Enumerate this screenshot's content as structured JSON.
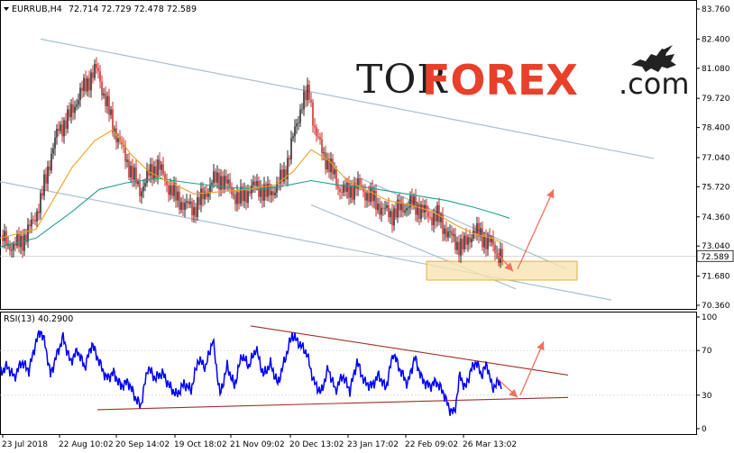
{
  "header": {
    "symbol": "EURRUB,H4",
    "ohlc": "72.714 72.729 72.478 72.589",
    "indicator": "RSI(13) 40.2900",
    "price_tag": "72.589"
  },
  "logo": {
    "part1": "TOR",
    "part2": "FOREX",
    "part3": ".com"
  },
  "colors": {
    "candle_up": "#0d0d0d",
    "candle_down": "#c81414",
    "ma_fast": "#f0a020",
    "ma_slow": "#20a090",
    "channel": "#a9bfd0",
    "rsi_line": "#0000ff",
    "rsi_trend": "#a0302a",
    "arrow": "#f07060",
    "zone_fill": "#f7e2b0",
    "zone_border": "#e0b040"
  },
  "chart_data": [
    {
      "type": "candlestick",
      "title": "EURRUB,H4",
      "ylim": [
        70.36,
        83.76
      ],
      "y_ticks": [
        "83.760",
        "82.400",
        "81.080",
        "79.720",
        "78.400",
        "77.040",
        "75.720",
        "74.360",
        "73.040",
        "71.680",
        "70.360"
      ],
      "x_ticks": [
        "23 Jul 2018",
        "22 Aug 10:02",
        "20 Sep 14:02",
        "19 Oct 18:02",
        "21 Nov 09:02",
        "20 Dec 13:02",
        "23 Jan 17:02",
        "22 Feb 09:02",
        "26 Mar 13:02"
      ],
      "last_price": 72.589,
      "close_path": [
        [
          0,
          73.6
        ],
        [
          15,
          73.1
        ],
        [
          30,
          73.6
        ],
        [
          45,
          75.0
        ],
        [
          55,
          76.8
        ],
        [
          65,
          78.2
        ],
        [
          75,
          78.6
        ],
        [
          85,
          79.5
        ],
        [
          100,
          80.6
        ],
        [
          108,
          81.0
        ],
        [
          115,
          79.9
        ],
        [
          125,
          78.6
        ],
        [
          135,
          77.6
        ],
        [
          145,
          76.6
        ],
        [
          155,
          75.7
        ],
        [
          165,
          76.4
        ],
        [
          175,
          76.8
        ],
        [
          185,
          75.9
        ],
        [
          195,
          75.2
        ],
        [
          205,
          74.8
        ],
        [
          215,
          74.6
        ],
        [
          225,
          75.1
        ],
        [
          235,
          75.8
        ],
        [
          245,
          76.0
        ],
        [
          255,
          75.6
        ],
        [
          265,
          75.1
        ],
        [
          275,
          75.6
        ],
        [
          285,
          75.9
        ],
        [
          295,
          75.5
        ],
        [
          305,
          75.8
        ],
        [
          315,
          76.4
        ],
        [
          325,
          78.0
        ],
        [
          335,
          79.6
        ],
        [
          343,
          79.9
        ],
        [
          350,
          78.1
        ],
        [
          358,
          77.1
        ],
        [
          365,
          76.6
        ],
        [
          375,
          75.6
        ],
        [
          385,
          75.3
        ],
        [
          395,
          75.7
        ],
        [
          405,
          75.4
        ],
        [
          415,
          75.1
        ],
        [
          425,
          74.7
        ],
        [
          435,
          74.6
        ],
        [
          445,
          74.9
        ],
        [
          455,
          75.1
        ],
        [
          465,
          74.9
        ],
        [
          475,
          74.5
        ],
        [
          485,
          74.4
        ],
        [
          495,
          73.7
        ],
        [
          505,
          73.1
        ],
        [
          515,
          72.9
        ],
        [
          525,
          73.6
        ],
        [
          535,
          73.3
        ],
        [
          545,
          73.0
        ],
        [
          553,
          72.6
        ],
        [
          558,
          72.589
        ]
      ],
      "ma_fast": [
        [
          0,
          73.4
        ],
        [
          40,
          73.8
        ],
        [
          80,
          76.6
        ],
        [
          105,
          77.8
        ],
        [
          125,
          78.3
        ],
        [
          145,
          77.2
        ],
        [
          165,
          76.4
        ],
        [
          190,
          75.9
        ],
        [
          215,
          75.4
        ],
        [
          245,
          75.5
        ],
        [
          275,
          75.6
        ],
        [
          305,
          75.8
        ],
        [
          325,
          76.4
        ],
        [
          345,
          77.4
        ],
        [
          365,
          76.9
        ],
        [
          385,
          76.0
        ],
        [
          405,
          75.6
        ],
        [
          430,
          75.1
        ],
        [
          455,
          74.9
        ],
        [
          480,
          74.6
        ],
        [
          505,
          74.0
        ],
        [
          525,
          73.6
        ],
        [
          545,
          73.4
        ],
        [
          556,
          73.2
        ]
      ],
      "ma_slow": [
        [
          0,
          73.0
        ],
        [
          40,
          73.4
        ],
        [
          80,
          74.6
        ],
        [
          110,
          75.6
        ],
        [
          140,
          75.9
        ],
        [
          175,
          76.1
        ],
        [
          210,
          75.9
        ],
        [
          250,
          75.7
        ],
        [
          290,
          75.6
        ],
        [
          320,
          75.8
        ],
        [
          345,
          76.0
        ],
        [
          375,
          75.8
        ],
        [
          405,
          75.7
        ],
        [
          435,
          75.5
        ],
        [
          465,
          75.3
        ],
        [
          495,
          75.1
        ],
        [
          525,
          74.8
        ],
        [
          550,
          74.5
        ],
        [
          565,
          74.3
        ]
      ],
      "series": [
        {
          "name": "",
          "kind": "channel-line",
          "points": [
            [
              45,
              82.4
            ],
            [
              725,
              77.0
            ]
          ]
        },
        {
          "name": "",
          "kind": "channel-line",
          "points": [
            [
              0,
              75.95
            ],
            [
              678,
              70.6
            ]
          ]
        },
        {
          "name": "",
          "kind": "channel-line",
          "points": [
            [
              400,
              76.1
            ],
            [
              628,
              72.0
            ]
          ]
        },
        {
          "name": "",
          "kind": "channel-line",
          "points": [
            [
              345,
              74.9
            ],
            [
              572,
              71.1
            ]
          ]
        }
      ],
      "zone": {
        "x": [
          473,
          640
        ],
        "y": [
          71.5,
          72.35
        ]
      },
      "arrows": [
        {
          "points": [
            [
              547,
              72.9
            ],
            [
              569,
              71.9
            ]
          ]
        },
        {
          "points": [
            [
              574,
              72.0
            ],
            [
              614,
              75.6
            ]
          ]
        }
      ]
    },
    {
      "type": "line",
      "title": "RSI(13) 40.2900",
      "ylim": [
        0,
        100
      ],
      "y_ticks": [
        "100",
        "70",
        "30",
        "0"
      ],
      "value": 40.29,
      "rsi_path": [
        [
          0,
          50
        ],
        [
          8,
          56
        ],
        [
          16,
          46
        ],
        [
          24,
          60
        ],
        [
          32,
          52
        ],
        [
          40,
          78
        ],
        [
          45,
          88
        ],
        [
          50,
          76
        ],
        [
          56,
          48
        ],
        [
          62,
          64
        ],
        [
          70,
          82
        ],
        [
          78,
          60
        ],
        [
          86,
          70
        ],
        [
          94,
          55
        ],
        [
          102,
          76
        ],
        [
          110,
          60
        ],
        [
          118,
          45
        ],
        [
          126,
          50
        ],
        [
          134,
          38
        ],
        [
          142,
          42
        ],
        [
          150,
          28
        ],
        [
          156,
          20
        ],
        [
          164,
          55
        ],
        [
          172,
          45
        ],
        [
          180,
          50
        ],
        [
          188,
          38
        ],
        [
          196,
          30
        ],
        [
          204,
          40
        ],
        [
          212,
          35
        ],
        [
          220,
          62
        ],
        [
          228,
          55
        ],
        [
          236,
          80
        ],
        [
          244,
          30
        ],
        [
          252,
          56
        ],
        [
          260,
          38
        ],
        [
          268,
          66
        ],
        [
          276,
          56
        ],
        [
          284,
          72
        ],
        [
          292,
          48
        ],
        [
          300,
          58
        ],
        [
          308,
          40
        ],
        [
          316,
          62
        ],
        [
          324,
          84
        ],
        [
          332,
          76
        ],
        [
          340,
          68
        ],
        [
          348,
          42
        ],
        [
          356,
          32
        ],
        [
          364,
          54
        ],
        [
          372,
          34
        ],
        [
          380,
          48
        ],
        [
          388,
          34
        ],
        [
          396,
          60
        ],
        [
          404,
          42
        ],
        [
          412,
          38
        ],
        [
          420,
          48
        ],
        [
          428,
          36
        ],
        [
          436,
          68
        ],
        [
          444,
          52
        ],
        [
          452,
          40
        ],
        [
          460,
          64
        ],
        [
          468,
          44
        ],
        [
          476,
          38
        ],
        [
          484,
          42
        ],
        [
          492,
          32
        ],
        [
          498,
          18
        ],
        [
          504,
          14
        ],
        [
          510,
          48
        ],
        [
          516,
          36
        ],
        [
          522,
          52
        ],
        [
          528,
          60
        ],
        [
          534,
          48
        ],
        [
          540,
          58
        ],
        [
          546,
          36
        ],
        [
          552,
          42
        ],
        [
          556,
          40.29
        ]
      ],
      "series": [
        {
          "name": "",
          "kind": "trend-upper",
          "points": [
            [
              278,
              92
            ],
            [
              630,
              48
            ]
          ]
        },
        {
          "name": "",
          "kind": "trend-lower",
          "points": [
            [
              108,
              17
            ],
            [
              630,
              28
            ]
          ]
        }
      ],
      "arrows": [
        {
          "points": [
            [
              550,
              46
            ],
            [
              574,
              28
            ]
          ]
        },
        {
          "points": [
            [
              577,
              30
            ],
            [
              603,
              78
            ]
          ]
        }
      ]
    }
  ]
}
